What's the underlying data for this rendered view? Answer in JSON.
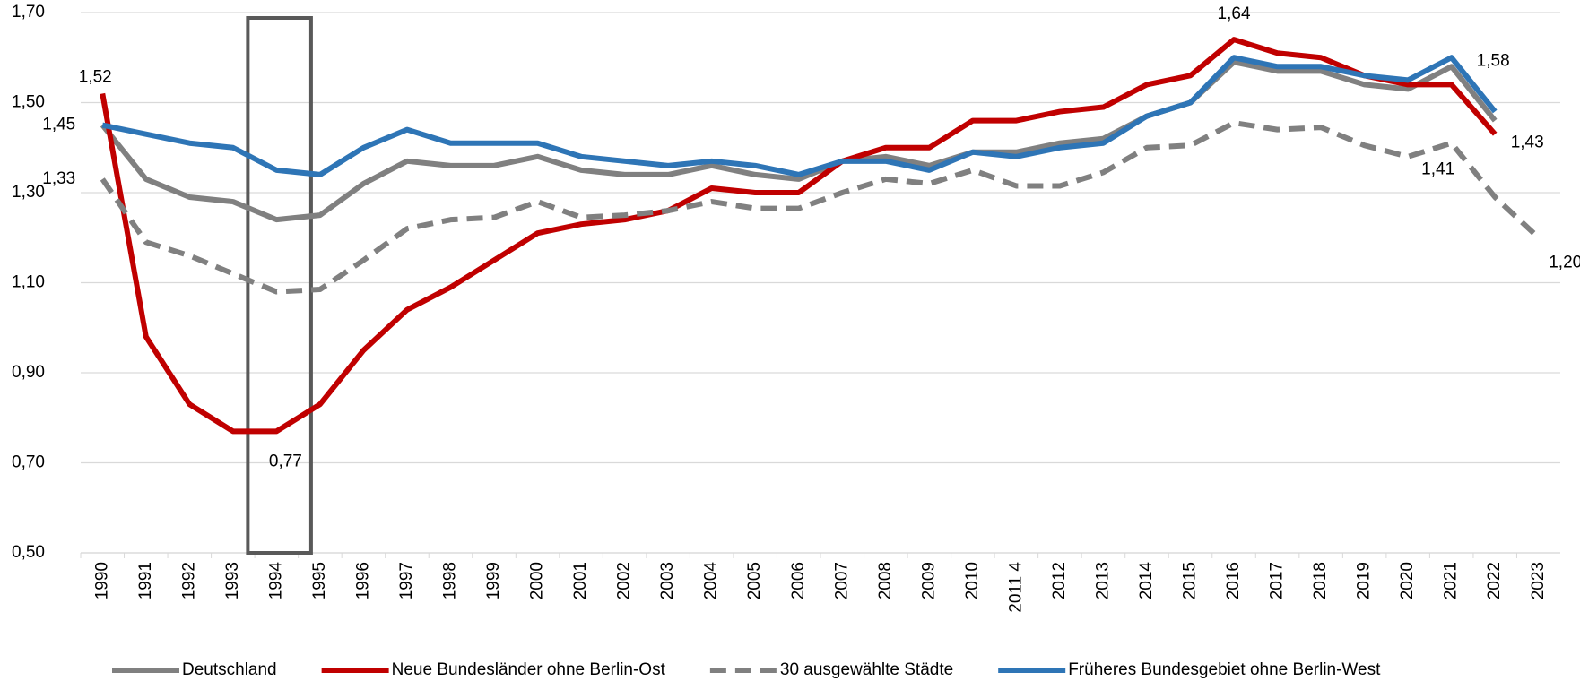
{
  "chart_data": {
    "type": "line",
    "categories": [
      "1990",
      "1991",
      "1992",
      "1993",
      "1994",
      "1995",
      "1996",
      "1997",
      "1998",
      "1999",
      "2000",
      "2001",
      "2002",
      "2003",
      "2004",
      "2005",
      "2006",
      "2007",
      "2008",
      "2009",
      "2010",
      "2011 4",
      "2012",
      "2013",
      "2014",
      "2015",
      "2016",
      "2017",
      "2018",
      "2019",
      "2020",
      "2021",
      "2022",
      "2023"
    ],
    "ylim": [
      0.5,
      1.7
    ],
    "yticks": [
      {
        "value": 0.5,
        "label": "0,50"
      },
      {
        "value": 0.7,
        "label": "0,70"
      },
      {
        "value": 0.9,
        "label": "0,90"
      },
      {
        "value": 1.1,
        "label": "1,10"
      },
      {
        "value": 1.3,
        "label": "1,30"
      },
      {
        "value": 1.5,
        "label": "1,50"
      },
      {
        "value": 1.7,
        "label": "1,70"
      }
    ],
    "grid": true,
    "legend": "bottom",
    "series": [
      {
        "name": "Deutschland",
        "color": "#808080",
        "dash": false,
        "values": [
          1.45,
          1.33,
          1.29,
          1.28,
          1.24,
          1.25,
          1.32,
          1.37,
          1.36,
          1.36,
          1.38,
          1.35,
          1.34,
          1.34,
          1.36,
          1.34,
          1.33,
          1.37,
          1.38,
          1.36,
          1.39,
          1.39,
          1.41,
          1.42,
          1.47,
          1.5,
          1.59,
          1.57,
          1.57,
          1.54,
          1.53,
          1.58,
          1.46,
          null
        ],
        "value_labels": [
          "1,45",
          null,
          null,
          null,
          null,
          null,
          null,
          null,
          null,
          null,
          null,
          null,
          null,
          null,
          null,
          null,
          null,
          null,
          null,
          null,
          null,
          null,
          null,
          null,
          null,
          null,
          null,
          null,
          null,
          null,
          null,
          "1,58",
          null,
          null
        ]
      },
      {
        "name": "Neue Bundesländer ohne Berlin-Ost",
        "color": "#c00000",
        "dash": false,
        "values": [
          1.52,
          0.98,
          0.83,
          0.77,
          0.77,
          0.83,
          0.95,
          1.04,
          1.09,
          1.15,
          1.21,
          1.23,
          1.24,
          1.26,
          1.31,
          1.3,
          1.3,
          1.37,
          1.4,
          1.4,
          1.46,
          1.46,
          1.48,
          1.49,
          1.54,
          1.56,
          1.64,
          1.61,
          1.6,
          1.56,
          1.54,
          1.54,
          1.43,
          null
        ],
        "value_labels": [
          "1,52",
          null,
          null,
          null,
          "0,77",
          null,
          null,
          null,
          null,
          null,
          null,
          null,
          null,
          null,
          null,
          null,
          null,
          null,
          null,
          null,
          null,
          null,
          null,
          null,
          null,
          null,
          "1,64",
          null,
          null,
          null,
          null,
          null,
          "1,43",
          null
        ]
      },
      {
        "name": "30 ausgewählte Städte",
        "color": "#808080",
        "dash": true,
        "values": [
          1.33,
          1.19,
          1.16,
          1.12,
          1.08,
          1.085,
          1.15,
          1.22,
          1.24,
          1.245,
          1.28,
          1.245,
          1.25,
          1.26,
          1.28,
          1.265,
          1.265,
          1.3,
          1.33,
          1.32,
          1.35,
          1.315,
          1.315,
          1.345,
          1.4,
          1.405,
          1.455,
          1.44,
          1.445,
          1.405,
          1.38,
          1.41,
          1.29,
          1.2
        ],
        "value_labels": [
          "1,33",
          null,
          null,
          null,
          null,
          null,
          null,
          null,
          null,
          null,
          null,
          null,
          null,
          null,
          null,
          null,
          null,
          null,
          null,
          null,
          null,
          null,
          null,
          null,
          null,
          null,
          null,
          null,
          null,
          null,
          null,
          "1,41",
          null,
          "1,20"
        ]
      },
      {
        "name": "Früheres Bundesgebiet ohne Berlin-West",
        "color": "#2e75b6",
        "dash": false,
        "values": [
          1.45,
          1.43,
          1.41,
          1.4,
          1.35,
          1.34,
          1.4,
          1.44,
          1.41,
          1.41,
          1.41,
          1.38,
          1.37,
          1.36,
          1.37,
          1.36,
          1.34,
          1.37,
          1.37,
          1.35,
          1.39,
          1.38,
          1.4,
          1.41,
          1.47,
          1.5,
          1.6,
          1.58,
          1.58,
          1.56,
          1.55,
          1.6,
          1.48,
          null
        ],
        "value_labels": [
          null,
          null,
          null,
          null,
          null,
          null,
          null,
          null,
          null,
          null,
          null,
          null,
          null,
          null,
          null,
          null,
          null,
          null,
          null,
          null,
          null,
          null,
          null,
          null,
          null,
          null,
          null,
          null,
          null,
          null,
          null,
          null,
          null,
          null
        ]
      }
    ]
  }
}
